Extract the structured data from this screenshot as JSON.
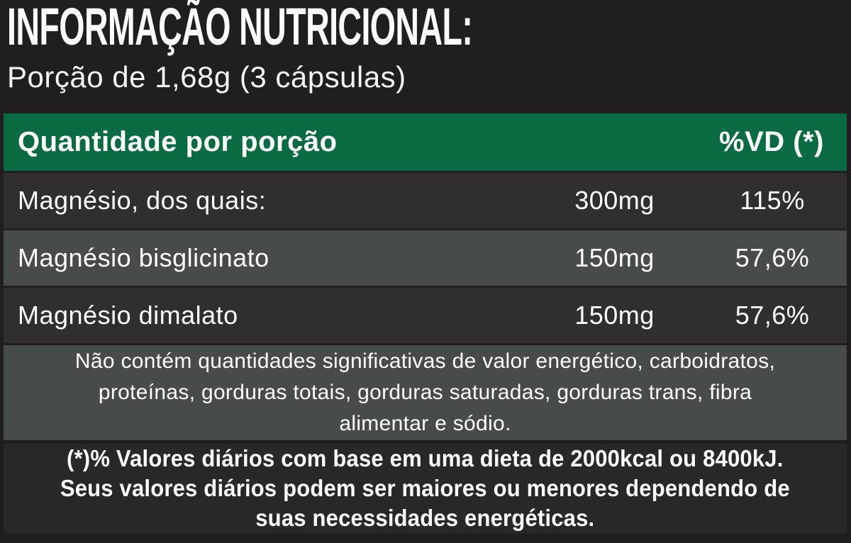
{
  "label": {
    "title": "INFORMAÇÃO NUTRICIONAL:",
    "serving": "Porção de 1,68g (3 cápsulas)"
  },
  "table": {
    "header": {
      "quantity_label": "Quantidade por porção",
      "dv_label": "%VD (*)"
    },
    "rows": [
      {
        "name": "Magnésio, dos quais:",
        "amount": "300mg",
        "dv": "115%"
      },
      {
        "name": "Magnésio bisglicinato",
        "amount": "150mg",
        "dv": "57,6%"
      },
      {
        "name": "Magnésio dimalato",
        "amount": "150mg",
        "dv": "57,6%"
      }
    ],
    "notice": {
      "line1": "Não contém quantidades significativas de valor energético, carboidratos,",
      "line2": "proteínas, gorduras totais, gorduras saturadas, gorduras trans, fibra",
      "line3": "alimentar e sódio."
    },
    "footnote": {
      "line1": "(*)% Valores diários com base em uma dieta de 2000kcal ou 8400kJ.",
      "line2": "Seus valores diários podem ser maiores ou menores dependendo de",
      "line3": "suas necessidades energéticas."
    }
  },
  "colors": {
    "page_background": "#211e1f",
    "header_green": "#0a6b42",
    "row_dark": "#312e2f",
    "row_light": "#474c4b",
    "footnote_background": "#2a2728",
    "text": "#fdfdfd"
  }
}
